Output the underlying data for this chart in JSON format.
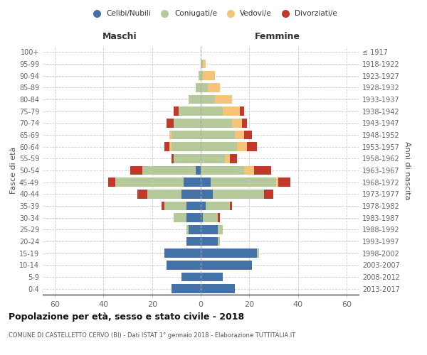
{
  "age_groups": [
    "0-4",
    "5-9",
    "10-14",
    "15-19",
    "20-24",
    "25-29",
    "30-34",
    "35-39",
    "40-44",
    "45-49",
    "50-54",
    "55-59",
    "60-64",
    "65-69",
    "70-74",
    "75-79",
    "80-84",
    "85-89",
    "90-94",
    "95-99",
    "100+"
  ],
  "birth_years": [
    "2013-2017",
    "2008-2012",
    "2003-2007",
    "1998-2002",
    "1993-1997",
    "1988-1992",
    "1983-1987",
    "1978-1982",
    "1973-1977",
    "1968-1972",
    "1963-1967",
    "1958-1962",
    "1953-1957",
    "1948-1952",
    "1943-1947",
    "1938-1942",
    "1933-1937",
    "1928-1932",
    "1923-1927",
    "1918-1922",
    "≤ 1917"
  ],
  "male": {
    "celibi": [
      12,
      8,
      14,
      15,
      6,
      5,
      6,
      6,
      8,
      7,
      2,
      0,
      0,
      0,
      0,
      0,
      0,
      0,
      0,
      0,
      0
    ],
    "coniugati": [
      0,
      0,
      0,
      0,
      0,
      1,
      5,
      9,
      14,
      28,
      22,
      11,
      12,
      12,
      11,
      9,
      5,
      2,
      1,
      0,
      0
    ],
    "vedovi": [
      0,
      0,
      0,
      0,
      0,
      0,
      0,
      0,
      0,
      0,
      0,
      0,
      1,
      1,
      0,
      0,
      0,
      0,
      0,
      0,
      0
    ],
    "divorziati": [
      0,
      0,
      0,
      0,
      0,
      0,
      0,
      1,
      4,
      3,
      5,
      1,
      2,
      0,
      3,
      2,
      0,
      0,
      0,
      0,
      0
    ]
  },
  "female": {
    "nubili": [
      14,
      9,
      21,
      23,
      7,
      7,
      1,
      2,
      5,
      4,
      0,
      0,
      0,
      0,
      0,
      0,
      0,
      0,
      0,
      0,
      0
    ],
    "coniugate": [
      0,
      0,
      0,
      1,
      1,
      2,
      6,
      10,
      21,
      27,
      18,
      10,
      15,
      14,
      13,
      9,
      6,
      3,
      1,
      1,
      0
    ],
    "vedove": [
      0,
      0,
      0,
      0,
      0,
      0,
      0,
      0,
      0,
      1,
      4,
      2,
      4,
      4,
      4,
      7,
      7,
      5,
      5,
      1,
      0
    ],
    "divorziate": [
      0,
      0,
      0,
      0,
      0,
      0,
      1,
      1,
      4,
      5,
      7,
      3,
      4,
      3,
      2,
      2,
      0,
      0,
      0,
      0,
      0
    ]
  },
  "colors": {
    "celibi": "#4472a8",
    "coniugati": "#b5c99a",
    "vedovi": "#f5c47a",
    "divorziati": "#c0392b"
  },
  "xlim": 65,
  "title": "Popolazione per età, sesso e stato civile - 2018",
  "subtitle": "COMUNE DI CASTELLETTO CERVO (BI) - Dati ISTAT 1° gennaio 2018 - Elaborazione TUTTITALIA.IT",
  "ylabel": "Fasce di età",
  "ylabel_right": "Anni di nascita",
  "xlabel_left": "Maschi",
  "xlabel_right": "Femmine"
}
